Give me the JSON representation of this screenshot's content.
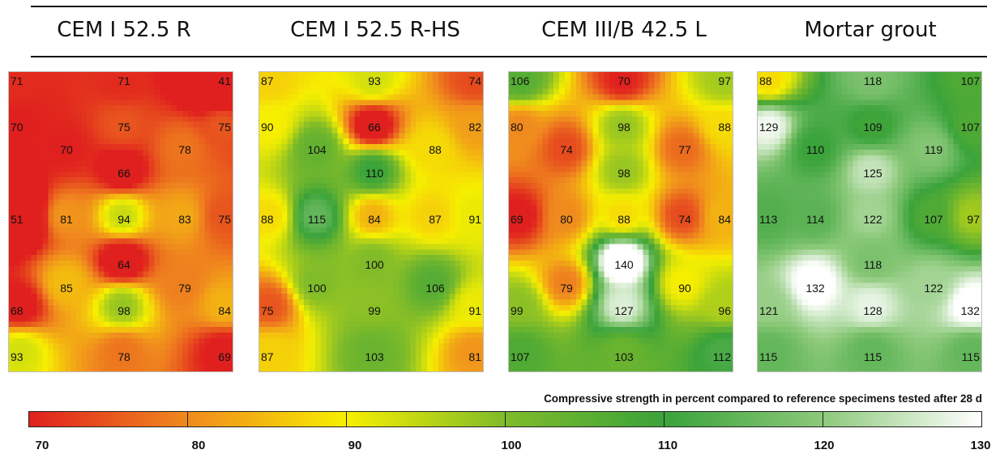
{
  "chart_data": {
    "type": "heatmap",
    "caption": "Compressive strength in percent compared to reference specimens tested after 28 d",
    "colorbar": {
      "min": 70,
      "max": 130,
      "ticks": [
        70,
        80,
        90,
        100,
        110,
        120,
        130
      ],
      "colors": [
        {
          "value": 70,
          "color": "#e0201e"
        },
        {
          "value": 80,
          "color": "#f08a1e"
        },
        {
          "value": 90,
          "color": "#f7ef00"
        },
        {
          "value": 100,
          "color": "#7fbb2a"
        },
        {
          "value": 110,
          "color": "#3aa33a"
        },
        {
          "value": 120,
          "color": "#8cc97a"
        },
        {
          "value": 130,
          "color": "#ffffff"
        }
      ]
    },
    "panels": [
      {
        "title": "CEM I 52.5 R",
        "points": [
          {
            "col": 0,
            "row": 0,
            "value": 71
          },
          {
            "col": 2,
            "row": 0,
            "value": 71
          },
          {
            "col": 4,
            "row": 0,
            "value": 41
          },
          {
            "col": 0,
            "row": 1,
            "value": 70
          },
          {
            "col": 2,
            "row": 1,
            "value": 75
          },
          {
            "col": 4,
            "row": 1,
            "value": 75
          },
          {
            "col": 1,
            "row": 1.5,
            "value": 70
          },
          {
            "col": 3,
            "row": 1.5,
            "value": 78
          },
          {
            "col": 2,
            "row": 2,
            "value": 66
          },
          {
            "col": 0,
            "row": 3,
            "value": 51
          },
          {
            "col": 1,
            "row": 3,
            "value": 81
          },
          {
            "col": 2,
            "row": 3,
            "value": 94
          },
          {
            "col": 3,
            "row": 3,
            "value": 83
          },
          {
            "col": 4,
            "row": 3,
            "value": 75
          },
          {
            "col": 2,
            "row": 4,
            "value": 64
          },
          {
            "col": 1,
            "row": 4.5,
            "value": 85
          },
          {
            "col": 3,
            "row": 4.5,
            "value": 79
          },
          {
            "col": 0,
            "row": 5,
            "value": 68
          },
          {
            "col": 2,
            "row": 5,
            "value": 98
          },
          {
            "col": 4,
            "row": 5,
            "value": 84
          },
          {
            "col": 0,
            "row": 6,
            "value": 93
          },
          {
            "col": 2,
            "row": 6,
            "value": 78
          },
          {
            "col": 4,
            "row": 6,
            "value": 69
          }
        ]
      },
      {
        "title": "CEM I 52.5 R-HS",
        "points": [
          {
            "col": 0,
            "row": 0,
            "value": 87
          },
          {
            "col": 2,
            "row": 0,
            "value": 93
          },
          {
            "col": 4,
            "row": 0,
            "value": 74
          },
          {
            "col": 0,
            "row": 1,
            "value": 90
          },
          {
            "col": 2,
            "row": 1,
            "value": 66
          },
          {
            "col": 4,
            "row": 1,
            "value": 82
          },
          {
            "col": 1,
            "row": 1.5,
            "value": 104
          },
          {
            "col": 3,
            "row": 1.5,
            "value": 88
          },
          {
            "col": 2,
            "row": 2,
            "value": 110
          },
          {
            "col": 0,
            "row": 3,
            "value": 88
          },
          {
            "col": 1,
            "row": 3,
            "value": 115
          },
          {
            "col": 2,
            "row": 3,
            "value": 84
          },
          {
            "col": 3,
            "row": 3,
            "value": 87
          },
          {
            "col": 4,
            "row": 3,
            "value": 91
          },
          {
            "col": 2,
            "row": 4,
            "value": 100
          },
          {
            "col": 1,
            "row": 4.5,
            "value": 100
          },
          {
            "col": 3,
            "row": 4.5,
            "value": 106
          },
          {
            "col": 0,
            "row": 5,
            "value": 75
          },
          {
            "col": 2,
            "row": 5,
            "value": 99
          },
          {
            "col": 4,
            "row": 5,
            "value": 91
          },
          {
            "col": 0,
            "row": 6,
            "value": 87
          },
          {
            "col": 2,
            "row": 6,
            "value": 103
          },
          {
            "col": 4,
            "row": 6,
            "value": 81
          }
        ]
      },
      {
        "title": "CEM III/B 42.5 L",
        "points": [
          {
            "col": 0,
            "row": 0,
            "value": 106
          },
          {
            "col": 2,
            "row": 0,
            "value": 70
          },
          {
            "col": 4,
            "row": 0,
            "value": 97
          },
          {
            "col": 0,
            "row": 1,
            "value": 80
          },
          {
            "col": 2,
            "row": 1,
            "value": 98
          },
          {
            "col": 4,
            "row": 1,
            "value": 88
          },
          {
            "col": 1,
            "row": 1.5,
            "value": 74
          },
          {
            "col": 3,
            "row": 1.5,
            "value": 77
          },
          {
            "col": 2,
            "row": 2,
            "value": 98
          },
          {
            "col": 0,
            "row": 3,
            "value": 69
          },
          {
            "col": 1,
            "row": 3,
            "value": 80
          },
          {
            "col": 2,
            "row": 3,
            "value": 88
          },
          {
            "col": 3,
            "row": 3,
            "value": 74
          },
          {
            "col": 4,
            "row": 3,
            "value": 84
          },
          {
            "col": 2,
            "row": 4,
            "value": 140
          },
          {
            "col": 1,
            "row": 4.5,
            "value": 79
          },
          {
            "col": 3,
            "row": 4.5,
            "value": 90
          },
          {
            "col": 0,
            "row": 5,
            "value": 99
          },
          {
            "col": 2,
            "row": 5,
            "value": 127
          },
          {
            "col": 4,
            "row": 5,
            "value": 96
          },
          {
            "col": 0,
            "row": 6,
            "value": 107
          },
          {
            "col": 2,
            "row": 6,
            "value": 103
          },
          {
            "col": 4,
            "row": 6,
            "value": 112
          }
        ]
      },
      {
        "title": "Mortar grout",
        "points": [
          {
            "col": 0,
            "row": 0,
            "value": 88
          },
          {
            "col": 2,
            "row": 0,
            "value": 118
          },
          {
            "col": 4,
            "row": 0,
            "value": 107
          },
          {
            "col": 0,
            "row": 1,
            "value": 129
          },
          {
            "col": 2,
            "row": 1,
            "value": 109
          },
          {
            "col": 4,
            "row": 1,
            "value": 107
          },
          {
            "col": 1,
            "row": 1.5,
            "value": 110
          },
          {
            "col": 3,
            "row": 1.5,
            "value": 119
          },
          {
            "col": 2,
            "row": 2,
            "value": 125
          },
          {
            "col": 0,
            "row": 3,
            "value": 113
          },
          {
            "col": 1,
            "row": 3,
            "value": 114
          },
          {
            "col": 2,
            "row": 3,
            "value": 122
          },
          {
            "col": 3,
            "row": 3,
            "value": 107
          },
          {
            "col": 4,
            "row": 3,
            "value": 97
          },
          {
            "col": 2,
            "row": 4,
            "value": 118
          },
          {
            "col": 1,
            "row": 4.5,
            "value": 132
          },
          {
            "col": 3,
            "row": 4.5,
            "value": 122
          },
          {
            "col": 0,
            "row": 5,
            "value": 121
          },
          {
            "col": 2,
            "row": 5,
            "value": 128
          },
          {
            "col": 4,
            "row": 5,
            "value": 132
          },
          {
            "col": 0,
            "row": 6,
            "value": 115
          },
          {
            "col": 2,
            "row": 6,
            "value": 115
          },
          {
            "col": 4,
            "row": 6,
            "value": 115
          }
        ]
      }
    ]
  }
}
